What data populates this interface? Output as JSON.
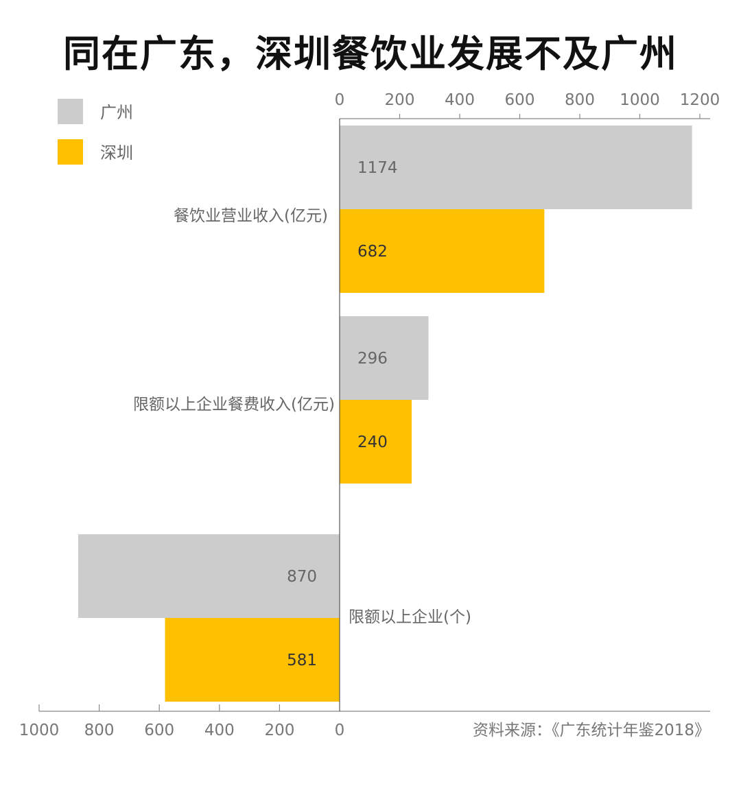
{
  "chart_data": {
    "type": "bar",
    "orientation": "horizontal",
    "title": "同在广东，深圳餐饮业发展不及广州",
    "source": "资料来源：《广东统计年鉴2018》",
    "categories": [
      "餐饮业营业收入(亿元)",
      "限额以上企业餐费收入(亿元)",
      "限额以上企业(个)"
    ],
    "series": [
      {
        "name": "广州",
        "color": "#cccccc",
        "values": [
          1174,
          296,
          870
        ]
      },
      {
        "name": "深圳",
        "color": "#ffc000",
        "values": [
          682,
          240,
          581
        ]
      }
    ],
    "axes": [
      {
        "position": "top",
        "applies_to": [
          "餐饮业营业收入(亿元)",
          "限额以上企业餐费收入(亿元)"
        ],
        "direction": "rightward",
        "range": [
          0,
          1200
        ],
        "ticks": [
          "0",
          "200",
          "400",
          "600",
          "800",
          "1000",
          "1200"
        ]
      },
      {
        "position": "bottom",
        "applies_to": [
          "限额以上企业(个)"
        ],
        "direction": "leftward",
        "range": [
          0,
          1000
        ],
        "ticks": [
          "1000",
          "800",
          "600",
          "400",
          "200",
          "0"
        ]
      }
    ],
    "legend": {
      "placement": "top-left",
      "entries": [
        "广州",
        "深圳"
      ]
    },
    "grid": false
  }
}
